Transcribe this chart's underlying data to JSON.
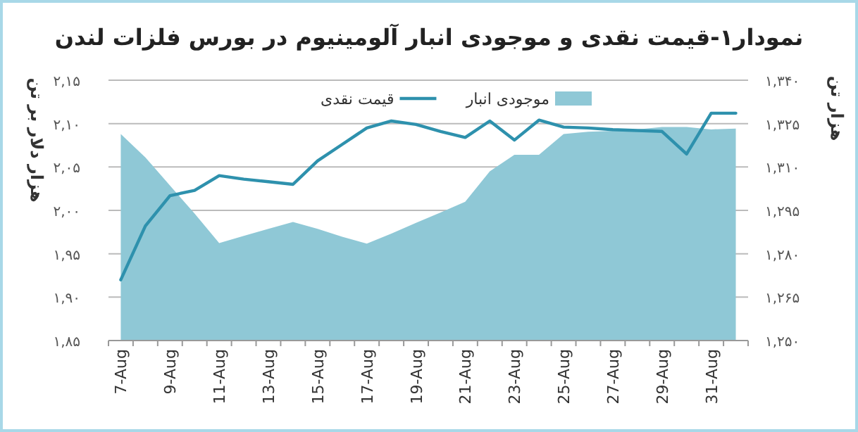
{
  "chart_data": {
    "type": "line",
    "title": "نمودار۱-قیمت نقدی و موجودی انبار آلومینیوم در بورس فلزات لندن",
    "ylabel": "هزار دلار بر تن",
    "y2label": "هزار تن",
    "categories": [
      "7-Aug",
      null,
      "9-Aug",
      null,
      "11-Aug",
      null,
      "13-Aug",
      null,
      "15-Aug",
      null,
      "17-Aug",
      null,
      "19-Aug",
      null,
      "21-Aug",
      null,
      "23-Aug",
      null,
      "25-Aug",
      null,
      "27-Aug",
      null,
      "29-Aug",
      null,
      "31-Aug",
      null
    ],
    "series": [
      {
        "name": "موجودی انبار",
        "type": "area",
        "axis": "y2",
        "color": "#8fc8d6",
        "values": [
          1.3214,
          1.3133,
          1.3036,
          1.2939,
          1.2837,
          1.2862,
          1.2886,
          1.291,
          1.2886,
          1.2859,
          1.2835,
          1.287,
          1.2907,
          1.2943,
          1.298,
          1.3085,
          1.3142,
          1.3142,
          1.3214,
          1.3222,
          1.3225,
          1.323,
          1.3238,
          1.3238,
          1.323,
          1.3233
        ]
      },
      {
        "name": "قیمت نقدی",
        "type": "line",
        "color": "#2e91ad",
        "values": [
          1.92,
          1.982,
          2.017,
          2.023,
          2.04,
          2.036,
          2.033,
          2.03,
          2.057,
          2.076,
          2.095,
          2.103,
          2.099,
          2.091,
          2.084,
          2.103,
          2.081,
          2.104,
          2.096,
          2.095,
          2.093,
          2.092,
          2.091,
          2.065,
          2.112,
          2.112
        ]
      }
    ],
    "ylim": [
      1.85,
      2.15
    ],
    "yticks": [
      {
        "value": 1.85,
        "label": "۱,۸۵"
      },
      {
        "value": 1.9,
        "label": "۱,۹۰"
      },
      {
        "value": 1.95,
        "label": "۱,۹۵"
      },
      {
        "value": 2.0,
        "label": "۲,۰۰"
      },
      {
        "value": 2.05,
        "label": "۲,۰۵"
      },
      {
        "value": 2.1,
        "label": "۲,۱۰"
      },
      {
        "value": 2.15,
        "label": "۲,۱۵"
      }
    ],
    "y2lim": [
      1.25,
      1.34
    ],
    "y2ticks": [
      {
        "value": 1.25,
        "label": "۱,۲۵۰"
      },
      {
        "value": 1.265,
        "label": "۱,۲۶۵"
      },
      {
        "value": 1.28,
        "label": "۱,۲۸۰"
      },
      {
        "value": 1.295,
        "label": "۱,۲۹۵"
      },
      {
        "value": 1.31,
        "label": "۱,۳۱۰"
      },
      {
        "value": 1.325,
        "label": "۱,۳۲۵"
      },
      {
        "value": 1.34,
        "label": "۱,۳۴۰"
      }
    ],
    "grid": "y",
    "legend": "top"
  }
}
